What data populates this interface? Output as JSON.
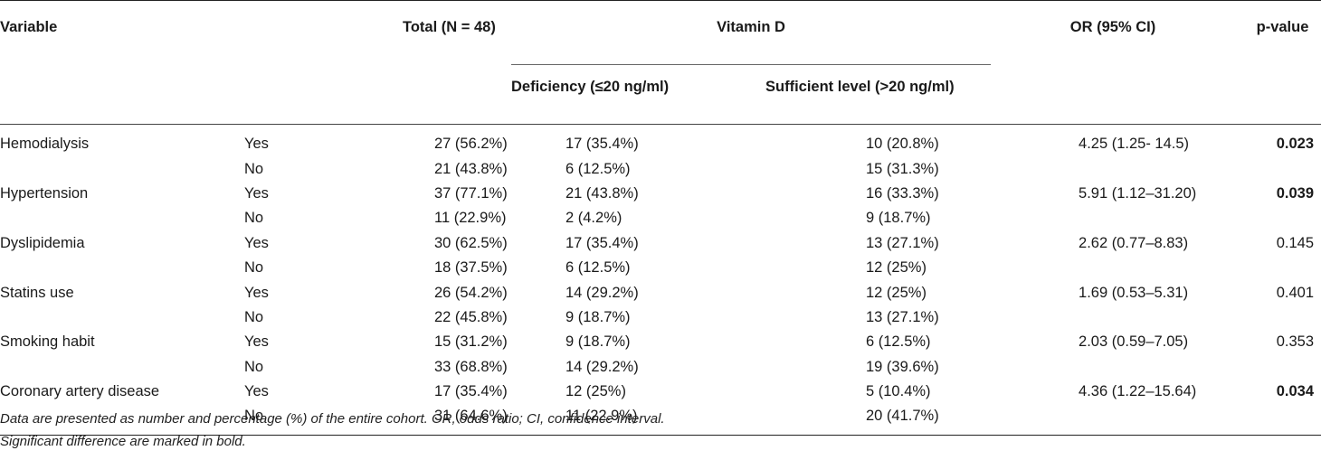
{
  "header": {
    "variable": "Variable",
    "total": "Total (N = 48)",
    "vitamin_d": "Vitamin D",
    "deficiency": "Deficiency (≤20 ng/ml)",
    "sufficient": "Sufficient level (>20 ng/ml)",
    "or": "OR (95% CI)",
    "pvalue": "p-value"
  },
  "rows": [
    {
      "variable": "Hemodialysis",
      "level": "Yes",
      "total": "27 (56.2%)",
      "deficiency": "17 (35.4%)",
      "sufficient": "10 (20.8%)",
      "or": "4.25 (1.25- 14.5)",
      "p": "0.023",
      "bold_p": true
    },
    {
      "variable": "",
      "level": "No",
      "total": "21 (43.8%)",
      "deficiency": "6 (12.5%)",
      "sufficient": "15 (31.3%)",
      "or": "",
      "p": ""
    },
    {
      "variable": "Hypertension",
      "level": "Yes",
      "total": "37 (77.1%)",
      "deficiency": "21 (43.8%)",
      "sufficient": "16 (33.3%)",
      "or": "5.91 (1.12–31.20)",
      "p": "0.039",
      "bold_p": true
    },
    {
      "variable": "",
      "level": "No",
      "total": "11 (22.9%)",
      "deficiency": "2 (4.2%)",
      "sufficient": "9 (18.7%)",
      "or": "",
      "p": ""
    },
    {
      "variable": "Dyslipidemia",
      "level": "Yes",
      "total": "30 (62.5%)",
      "deficiency": "17 (35.4%)",
      "sufficient": "13 (27.1%)",
      "or": "2.62 (0.77–8.83)",
      "p": "0.145"
    },
    {
      "variable": "",
      "level": "No",
      "total": "18 (37.5%)",
      "deficiency": "6 (12.5%)",
      "sufficient": "12 (25%)",
      "or": "",
      "p": ""
    },
    {
      "variable": "Statins use",
      "level": "Yes",
      "total": "26 (54.2%)",
      "deficiency": "14 (29.2%)",
      "sufficient": "12 (25%)",
      "or": "1.69 (0.53–5.31)",
      "p": "0.401"
    },
    {
      "variable": "",
      "level": "No",
      "total": "22 (45.8%)",
      "deficiency": "9 (18.7%)",
      "sufficient": "13 (27.1%)",
      "or": "",
      "p": ""
    },
    {
      "variable": "Smoking habit",
      "level": "Yes",
      "total": "15 (31.2%)",
      "deficiency": "9 (18.7%)",
      "sufficient": "6 (12.5%)",
      "or": "2.03 (0.59–7.05)",
      "p": "0.353"
    },
    {
      "variable": "",
      "level": "No",
      "total": "33 (68.8%)",
      "deficiency": "14 (29.2%)",
      "sufficient": "19 (39.6%)",
      "or": "",
      "p": ""
    },
    {
      "variable": "Coronary artery disease",
      "level": "Yes",
      "total": "17 (35.4%)",
      "deficiency": "12 (25%)",
      "sufficient": "5 (10.4%)",
      "or": "4.36 (1.22–15.64)",
      "p": "0.034",
      "bold_p": true
    },
    {
      "variable": "",
      "level": "No",
      "total": "31 (64.6%)",
      "deficiency": "11 (22.9%)",
      "sufficient": "20 (41.7%)",
      "or": "",
      "p": ""
    }
  ],
  "notes": {
    "line1": "Data are presented as number and percentage (%) of the entire cohort. OR, odds ratio; CI, confidence interval.",
    "line2": "Significant difference are marked in bold."
  }
}
